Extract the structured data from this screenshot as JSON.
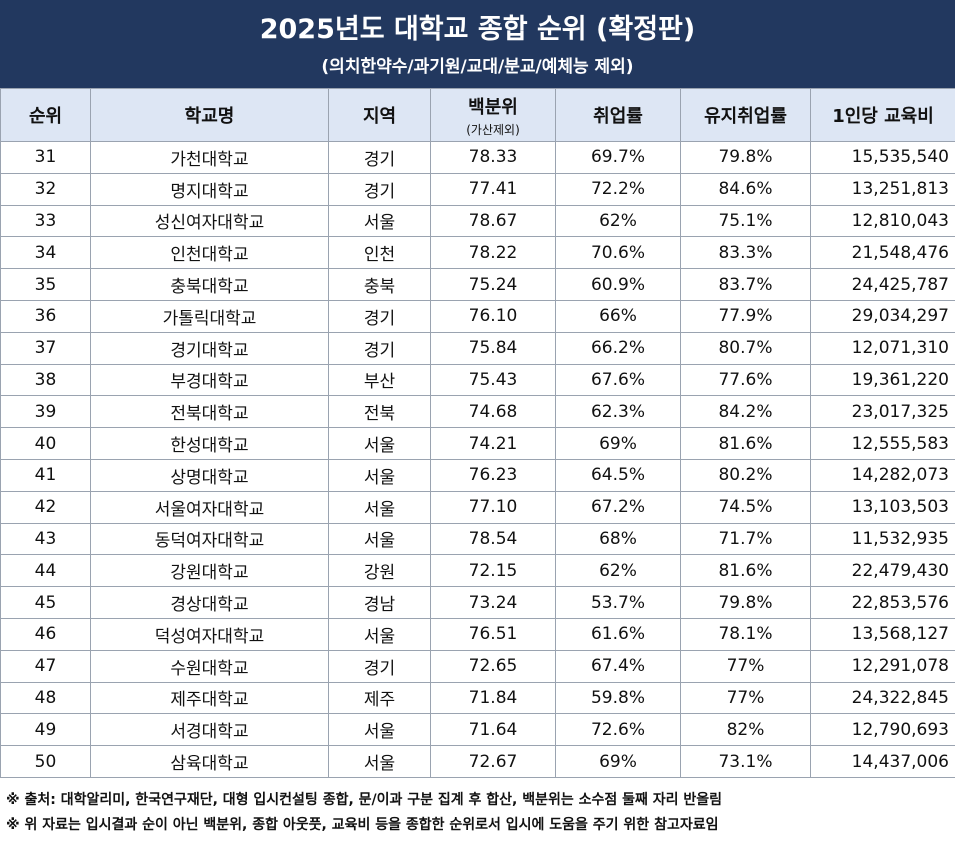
{
  "header": {
    "title": "2025년도 대학교 종합 순위 (확정판)",
    "subtitle": "(의치한약수/과기원/교대/분교/예체능 제외)"
  },
  "table": {
    "columns": [
      "순위",
      "학교명",
      "지역",
      {
        "text": "백분위",
        "sub": "(가산제외)"
      },
      "취업률",
      "유지취업률",
      "1인당 교육비"
    ],
    "rows": [
      [
        "31",
        "가천대학교",
        "경기",
        "78.33",
        "69.7%",
        "79.8%",
        "15,535,540"
      ],
      [
        "32",
        "명지대학교",
        "경기",
        "77.41",
        "72.2%",
        "84.6%",
        "13,251,813"
      ],
      [
        "33",
        "성신여자대학교",
        "서울",
        "78.67",
        "62%",
        "75.1%",
        "12,810,043"
      ],
      [
        "34",
        "인천대학교",
        "인천",
        "78.22",
        "70.6%",
        "83.3%",
        "21,548,476"
      ],
      [
        "35",
        "충북대학교",
        "충북",
        "75.24",
        "60.9%",
        "83.7%",
        "24,425,787"
      ],
      [
        "36",
        "가톨릭대학교",
        "경기",
        "76.10",
        "66%",
        "77.9%",
        "29,034,297"
      ],
      [
        "37",
        "경기대학교",
        "경기",
        "75.84",
        "66.2%",
        "80.7%",
        "12,071,310"
      ],
      [
        "38",
        "부경대학교",
        "부산",
        "75.43",
        "67.6%",
        "77.6%",
        "19,361,220"
      ],
      [
        "39",
        "전북대학교",
        "전북",
        "74.68",
        "62.3%",
        "84.2%",
        "23,017,325"
      ],
      [
        "40",
        "한성대학교",
        "서울",
        "74.21",
        "69%",
        "81.6%",
        "12,555,583"
      ],
      [
        "41",
        "상명대학교",
        "서울",
        "76.23",
        "64.5%",
        "80.2%",
        "14,282,073"
      ],
      [
        "42",
        "서울여자대학교",
        "서울",
        "77.10",
        "67.2%",
        "74.5%",
        "13,103,503"
      ],
      [
        "43",
        "동덕여자대학교",
        "서울",
        "78.54",
        "68%",
        "71.7%",
        "11,532,935"
      ],
      [
        "44",
        "강원대학교",
        "강원",
        "72.15",
        "62%",
        "81.6%",
        "22,479,430"
      ],
      [
        "45",
        "경상대학교",
        "경남",
        "73.24",
        "53.7%",
        "79.8%",
        "22,853,576"
      ],
      [
        "46",
        "덕성여자대학교",
        "서울",
        "76.51",
        "61.6%",
        "78.1%",
        "13,568,127"
      ],
      [
        "47",
        "수원대학교",
        "경기",
        "72.65",
        "67.4%",
        "77%",
        "12,291,078"
      ],
      [
        "48",
        "제주대학교",
        "제주",
        "71.84",
        "59.8%",
        "77%",
        "24,322,845"
      ],
      [
        "49",
        "서경대학교",
        "서울",
        "71.64",
        "72.6%",
        "82%",
        "12,790,693"
      ],
      [
        "50",
        "삼육대학교",
        "서울",
        "72.67",
        "69%",
        "73.1%",
        "14,437,006"
      ]
    ]
  },
  "notes": [
    "※ 출처: 대학알리미, 한국연구재단, 대형 입시컨설팅 종합, 문/이과 구분 집계 후 합산, 백분위는 소수점 둘째 자리 반올림",
    "※ 위 자료는 입시결과 순이 아닌 백분위, 종합 아웃풋, 교육비 등을 종합한 순위로서 입시에 도움을 주기 위한 참고자료임"
  ]
}
